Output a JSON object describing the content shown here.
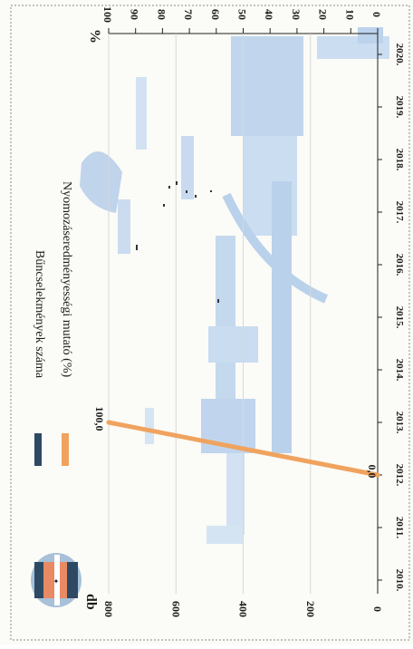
{
  "chart_data": {
    "type": "line",
    "orientation": "rotated-90-clockwise",
    "legend_position": "top",
    "x_ticks": [
      "2010.",
      "2011.",
      "2012.",
      "2013.",
      "2014.",
      "2015.",
      "2016.",
      "2017.",
      "2018.",
      "2019.",
      "2020."
    ],
    "y_left": {
      "label": "db",
      "ticks": [
        0,
        200,
        400,
        600,
        800
      ],
      "lim": [
        0,
        800
      ]
    },
    "y_right": {
      "label": "%",
      "ticks": [
        0,
        10,
        20,
        30,
        40,
        50,
        60,
        70,
        80,
        90,
        100
      ],
      "lim": [
        0,
        100
      ]
    },
    "series": [
      {
        "name": "Bűncselekmények száma",
        "color": "#2e4a63",
        "values": []
      },
      {
        "name": "Nyomozáseredményességi mutató (%)",
        "color": "#f0a35e",
        "points": [
          {
            "x": "2012.",
            "y": 0.0
          },
          {
            "x": "2013.",
            "y": 100.0
          }
        ],
        "labels": [
          "0,0",
          "100,0"
        ]
      }
    ]
  },
  "colors": {
    "background": "#fbfbf7",
    "bleed_through": "#9fc0e6",
    "axis": "#222222",
    "logo": [
      "#2e4a63",
      "#e88a63",
      "#a8c0d8"
    ]
  }
}
